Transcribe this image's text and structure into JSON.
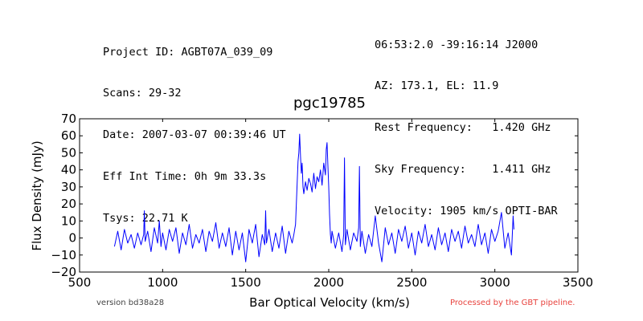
{
  "header_left": [
    "Project ID: AGBT07A_039_09",
    "Scans: 29-32",
    "Date: 2007-03-07 00:39:46 UT",
    "Eff Int Time: 0h 9m 33.3s",
    "Tsys: 22.71 K"
  ],
  "header_right": [
    "06:53:2.0 -39:16:14 J2000",
    "AZ: 173.1, EL: 11.9",
    "Rest Frequency:   1.420 GHz",
    "Sky Frequency:    1.411 GHz",
    "Velocity: 1905 km/s OPTI-BAR"
  ],
  "footer": {
    "version": "version bd38a28",
    "processed": "Processed by the GBT pipeline.",
    "processed_color": "#e8433e"
  },
  "chart_data": {
    "type": "line",
    "title": "pgc19785",
    "xlabel": "Bar Optical Velocity (km/s)",
    "ylabel": "Flux Density (mJy)",
    "xlim": [
      500,
      3500
    ],
    "ylim": [
      -20,
      70
    ],
    "xticks": [
      500,
      1000,
      1500,
      2000,
      2500,
      3000,
      3500
    ],
    "yticks": [
      -20,
      -10,
      0,
      10,
      20,
      30,
      40,
      50,
      60,
      70
    ],
    "grid": false,
    "line_color": "#0000ff",
    "series": [
      {
        "x": [
          710,
          730,
          750,
          770,
          790,
          810,
          830,
          850,
          870,
          886,
          890,
          895,
          910,
          930,
          950,
          970,
          980,
          990,
          1000,
          1020,
          1040,
          1060,
          1080,
          1100,
          1120,
          1140,
          1160,
          1180,
          1200,
          1220,
          1240,
          1260,
          1280,
          1300,
          1320,
          1340,
          1360,
          1380,
          1400,
          1420,
          1440,
          1460,
          1480,
          1500,
          1520,
          1540,
          1560,
          1580,
          1600,
          1615,
          1620,
          1625,
          1640,
          1660,
          1680,
          1700,
          1720,
          1740,
          1760,
          1780,
          1790,
          1800,
          1805,
          1810,
          1815,
          1820,
          1825,
          1830,
          1835,
          1840,
          1845,
          1850,
          1860,
          1870,
          1880,
          1890,
          1900,
          1910,
          1920,
          1930,
          1940,
          1950,
          1960,
          1970,
          1980,
          1985,
          1990,
          1995,
          2000,
          2005,
          2010,
          2015,
          2020,
          2040,
          2060,
          2080,
          2090,
          2095,
          2100,
          2110,
          2130,
          2150,
          2170,
          2180,
          2185,
          2190,
          2200,
          2220,
          2240,
          2260,
          2280,
          2300,
          2320,
          2340,
          2360,
          2380,
          2400,
          2420,
          2440,
          2460,
          2480,
          2500,
          2520,
          2540,
          2560,
          2580,
          2600,
          2620,
          2640,
          2660,
          2680,
          2700,
          2720,
          2740,
          2760,
          2780,
          2800,
          2820,
          2840,
          2860,
          2880,
          2900,
          2920,
          2940,
          2960,
          2980,
          3000,
          3020,
          3040,
          3060,
          3080,
          3100,
          3110,
          3115
        ],
        "y": [
          -5,
          4,
          -7,
          5,
          -3,
          2,
          -6,
          3,
          -4,
          2,
          16,
          -2,
          4,
          -8,
          6,
          -3,
          10,
          -5,
          3,
          -7,
          5,
          -2,
          6,
          -9,
          3,
          -4,
          8,
          -6,
          2,
          -3,
          5,
          -8,
          4,
          -2,
          9,
          -6,
          3,
          -5,
          6,
          -10,
          4,
          -7,
          3,
          -14,
          5,
          -3,
          8,
          -11,
          2,
          -4,
          16,
          -3,
          5,
          -8,
          3,
          -6,
          7,
          -9,
          4,
          -3,
          2,
          8,
          20,
          32,
          45,
          50,
          61,
          48,
          38,
          44,
          30,
          26,
          33,
          28,
          35,
          32,
          27,
          38,
          29,
          36,
          33,
          40,
          31,
          44,
          37,
          52,
          56,
          42,
          30,
          14,
          2,
          -3,
          4,
          -6,
          3,
          -8,
          2,
          47,
          -4,
          5,
          -7,
          3,
          -2,
          6,
          42,
          -5,
          4,
          -9,
          2,
          -5,
          13,
          -3,
          -14,
          6,
          -4,
          3,
          -9,
          5,
          -2,
          7,
          -6,
          3,
          -10,
          4,
          -3,
          8,
          -5,
          2,
          -7,
          6,
          -4,
          3,
          -8,
          5,
          -2,
          4,
          -6,
          7,
          -3,
          2,
          -5,
          8,
          -4,
          3,
          -9,
          5,
          -2,
          4,
          15,
          -6,
          3,
          -10,
          13,
          5
        ]
      }
    ]
  }
}
